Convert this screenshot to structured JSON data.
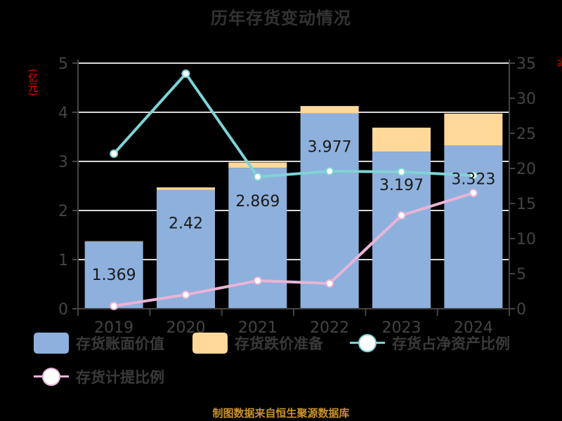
{
  "title": "历年存货变动情况",
  "left_axis_unit": "(亿元)",
  "right_axis_unit": "%",
  "source": "制图数据来自恒生聚源数据库",
  "colors": {
    "book_value": "#8eb0dc",
    "provision": "#ffd89a",
    "inventory_to_net_assets": "#7fd3d6",
    "provision_ratio": "#e8b4d8",
    "axis": "#444444",
    "grid": "#d9d9d9",
    "title": "#333333",
    "unit_label": "#ff0000",
    "source": "#c8922a"
  },
  "legend": [
    {
      "label": "存货账面价值",
      "type": "bar",
      "color_key": "book_value"
    },
    {
      "label": "存货跌价准备",
      "type": "bar",
      "color_key": "provision"
    },
    {
      "label": "存货占净资产比例",
      "type": "line",
      "color_key": "inventory_to_net_assets"
    },
    {
      "label": "存货计提比例",
      "type": "line",
      "color_key": "provision_ratio"
    }
  ],
  "chart_data": {
    "type": "bar",
    "title": "历年存货变动情况",
    "categories": [
      "2019",
      "2020",
      "2021",
      "2022",
      "2023",
      "2024"
    ],
    "series": [
      {
        "name": "存货账面价值",
        "type": "bar",
        "stack": "inventory",
        "axis": "left",
        "values": [
          1.369,
          2.42,
          2.869,
          3.977,
          3.197,
          3.323
        ],
        "labels_shown": true
      },
      {
        "name": "存货跌价准备",
        "type": "bar",
        "stack": "inventory",
        "axis": "left",
        "values": [
          0.006,
          0.05,
          0.11,
          0.15,
          0.49,
          0.65
        ],
        "labels_shown": false
      },
      {
        "name": "存货占净资产比例",
        "type": "line",
        "axis": "right",
        "values": [
          22.1,
          33.5,
          18.8,
          19.6,
          19.5,
          19.0
        ]
      },
      {
        "name": "存货计提比例",
        "type": "line",
        "axis": "right",
        "values": [
          0.4,
          2.0,
          4.0,
          3.6,
          13.3,
          16.5
        ]
      }
    ],
    "left_axis": {
      "label": "(亿元)",
      "ylim": [
        0,
        5
      ],
      "ticks": [
        0,
        1,
        2,
        3,
        4,
        5
      ]
    },
    "right_axis": {
      "label": "%",
      "ylim": [
        0,
        35
      ],
      "ticks": [
        0,
        5,
        10,
        15,
        20,
        25,
        30,
        35
      ]
    },
    "grid": true,
    "legend_position": "bottom"
  }
}
